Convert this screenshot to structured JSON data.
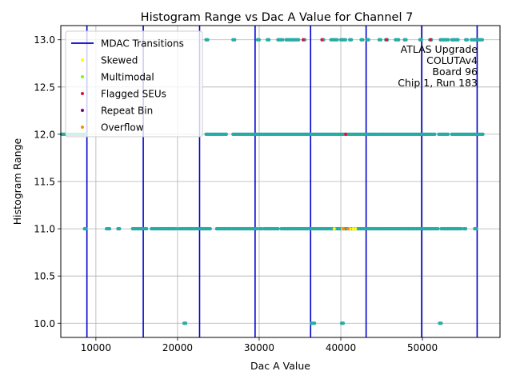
{
  "chart_data": {
    "type": "scatter",
    "title": "Histogram Range vs Dac A Value for Channel 7",
    "xlabel": "Dac A Value",
    "ylabel": "Histogram Range",
    "xlim": [
      5700,
      59500
    ],
    "ylim": [
      9.85,
      13.15
    ],
    "x_ticks": [
      10000,
      20000,
      30000,
      40000,
      50000
    ],
    "x_tick_labels": [
      "10000",
      "20000",
      "30000",
      "40000",
      "50000"
    ],
    "y_ticks": [
      10.0,
      10.5,
      11.0,
      11.5,
      12.0,
      12.5,
      13.0
    ],
    "y_tick_labels": [
      "10.0",
      "10.5",
      "11.0",
      "11.5",
      "12.0",
      "12.5",
      "13.0"
    ],
    "grid": true,
    "legend_position": "top-left",
    "annotation": [
      "ATLAS Upgrade",
      "COLUTAv4",
      "Board 96",
      "Chip 1, Run 183"
    ],
    "mdac_transitions": {
      "name": "MDAC Transitions",
      "color": "#0000cc",
      "x": [
        8900,
        15800,
        22700,
        29500,
        36300,
        43100,
        49900,
        56700
      ]
    },
    "series": [
      {
        "name": "",
        "color": "#20b2aa",
        "bands": [
          {
            "y": 13.0,
            "segments": [
              [
                23500,
                23700
              ],
              [
                26800,
                27000
              ],
              [
                29800,
                30000
              ],
              [
                31000,
                31200
              ],
              [
                32300,
                33000
              ],
              [
                33300,
                35000
              ],
              [
                35400,
                35700
              ],
              [
                37700,
                38000
              ],
              [
                38800,
                39600
              ],
              [
                40000,
                40600
              ],
              [
                41100,
                41300
              ],
              [
                42500,
                42700
              ],
              [
                43200,
                43500
              ],
              [
                44700,
                44900
              ],
              [
                45500,
                45700
              ],
              [
                46700,
                47100
              ],
              [
                47800,
                48000
              ],
              [
                49700,
                49900
              ],
              [
                50900,
                51100
              ],
              [
                52200,
                53200
              ],
              [
                53600,
                54500
              ],
              [
                55300,
                55500
              ],
              [
                56000,
                57500
              ]
            ]
          },
          {
            "y": 12.0,
            "segments": [
              [
                5800,
                8900
              ],
              [
                23500,
                26000
              ],
              [
                26800,
                51500
              ],
              [
                52000,
                53200
              ],
              [
                53600,
                57500
              ]
            ]
          },
          {
            "y": 11.0,
            "segments": [
              [
                8600,
                8800
              ],
              [
                11300,
                11700
              ],
              [
                12700,
                12900
              ],
              [
                14500,
                16300
              ],
              [
                16800,
                19900
              ],
              [
                20200,
                24000
              ],
              [
                24800,
                29000
              ],
              [
                29200,
                29800
              ],
              [
                30100,
                30400
              ],
              [
                30600,
                32400
              ],
              [
                32700,
                52000
              ],
              [
                52300,
                54800
              ],
              [
                55100,
                55400
              ],
              [
                56400,
                56600
              ]
            ]
          },
          {
            "y": 10.0,
            "segments": [
              [
                20800,
                21000
              ],
              [
                36400,
                36800
              ],
              [
                40100,
                40300
              ],
              [
                52100,
                52300
              ]
            ]
          }
        ]
      },
      {
        "name": "Skewed",
        "color": "#ffff00",
        "points": [
          [
            39200,
            11.0
          ],
          [
            40200,
            11.0
          ],
          [
            41100,
            11.0
          ],
          [
            41500,
            11.0
          ],
          [
            41800,
            11.0
          ]
        ]
      },
      {
        "name": "Multimodal",
        "color": "#7cfc00",
        "points": []
      },
      {
        "name": "Flagged SEUs",
        "color": "#dc143c",
        "points": [
          [
            35400,
            13.0
          ],
          [
            37700,
            13.0
          ],
          [
            45600,
            13.0
          ],
          [
            51000,
            13.0
          ],
          [
            40600,
            12.0
          ]
        ]
      },
      {
        "name": "Repeat Bin",
        "color": "#800080",
        "points": []
      },
      {
        "name": "Overflow",
        "color": "#ff8c00",
        "points": [
          [
            40300,
            11.0
          ],
          [
            40900,
            11.0
          ]
        ]
      }
    ]
  }
}
